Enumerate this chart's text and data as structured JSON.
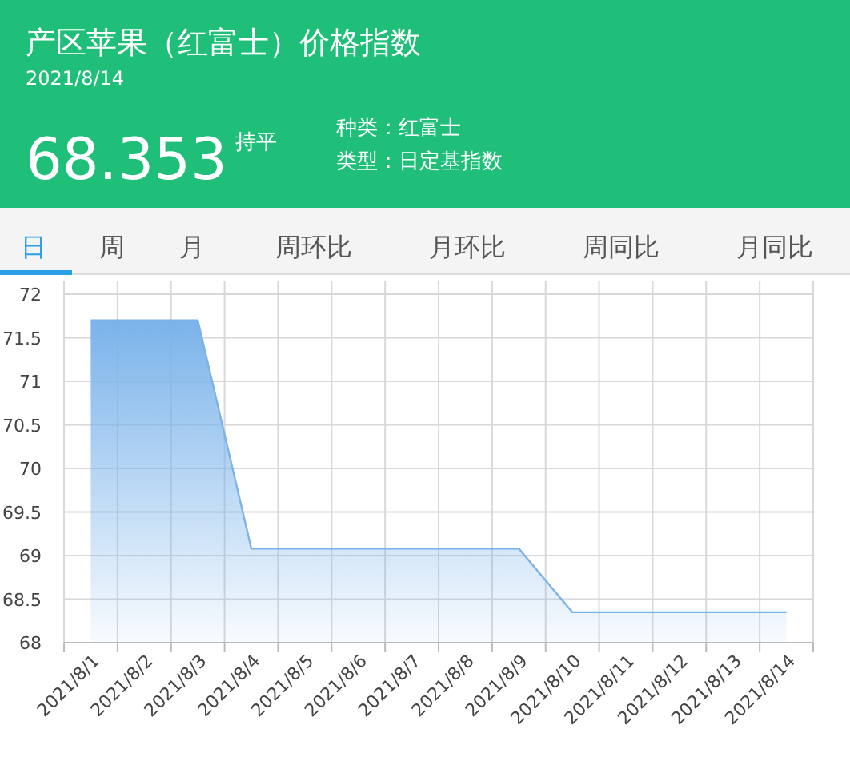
{
  "chart_data": {
    "type": "area",
    "title": "产区苹果（红富士）价格指数",
    "subtitle": "2021/8/14",
    "annotations": [
      "68.353",
      "持平",
      "种类：红富士",
      "类型：日定基指数",
      "日",
      "周",
      "月",
      "周环比",
      "月环比",
      "周同比",
      "月同比"
    ],
    "categories": [
      "2021/8/1",
      "2021/8/2",
      "2021/8/3",
      "2021/8/4",
      "2021/8/5",
      "2021/8/6",
      "2021/8/7",
      "2021/8/8",
      "2021/8/9",
      "2021/8/10",
      "2021/8/11",
      "2021/8/12",
      "2021/8/13",
      "2021/8/14"
    ],
    "values": [
      71.7,
      71.7,
      71.7,
      69.08,
      69.08,
      69.08,
      69.08,
      69.08,
      69.08,
      68.35,
      68.35,
      68.35,
      68.35,
      68.35
    ],
    "color": "#7ab3ea",
    "ylim": [
      68,
      72
    ],
    "yticks": [
      68,
      68.5,
      69,
      69.5,
      70,
      70.5,
      71,
      71.5,
      72
    ],
    "grid": true,
    "marker": "none"
  }
}
